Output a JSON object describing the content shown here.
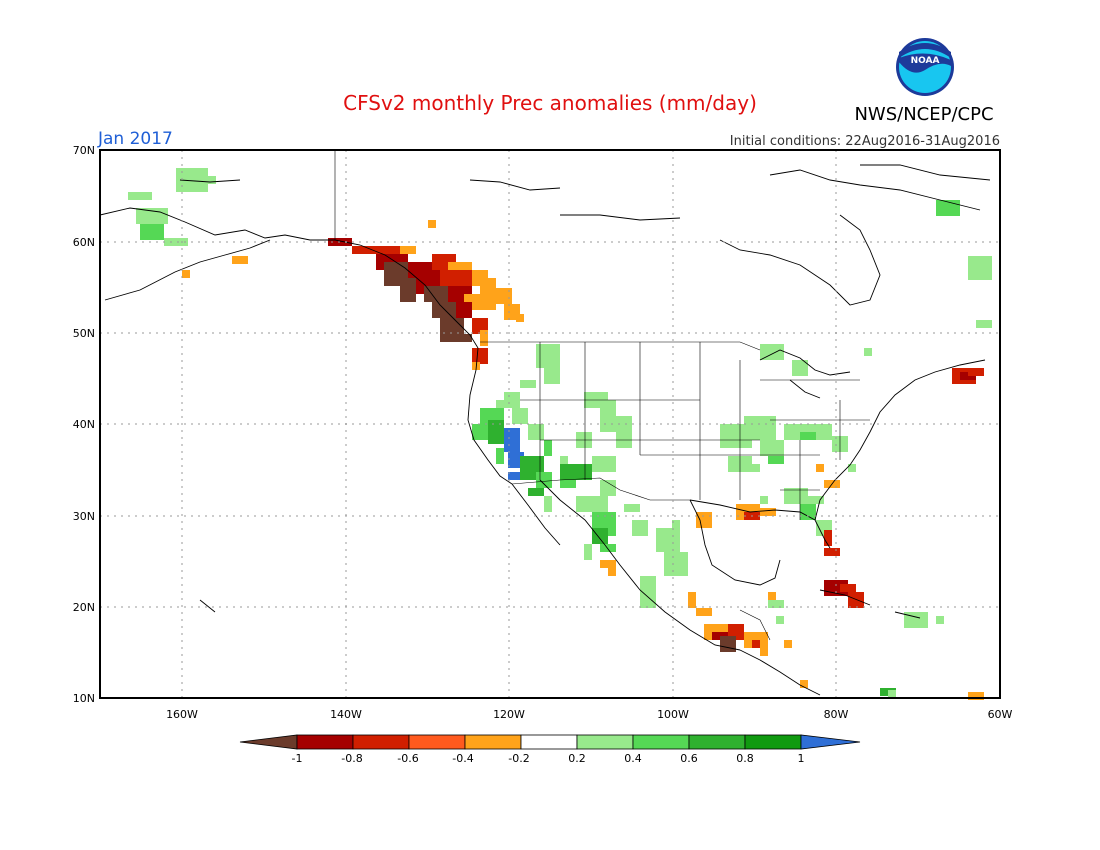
{
  "title": "CFSv2 monthly Prec anomalies (mm/day)",
  "agency": "NWS/NCEP/CPC",
  "logo_text": "NOAA",
  "valid_month": "Jan 2017",
  "init_conditions": "Initial conditions: 22Aug2016-31Aug2016",
  "lat_labels": [
    "70N",
    "60N",
    "50N",
    "40N",
    "30N",
    "20N",
    "10N"
  ],
  "lon_labels": [
    "160W",
    "140W",
    "120W",
    "100W",
    "80W",
    "60W"
  ],
  "colorbar": {
    "labels": [
      "-1",
      "-0.8",
      "-0.6",
      "-0.4",
      "-0.2",
      "0.2",
      "0.4",
      "0.6",
      "0.8",
      "1"
    ],
    "colors": [
      "#6b3b2b",
      "#a50000",
      "#d11f00",
      "#ff5a1e",
      "#ffa31a",
      "#ffffff",
      "#98e98c",
      "#55d855",
      "#2fb12f",
      "#109a10",
      "#2f6fd6"
    ]
  },
  "colors": {
    "title": "#e01010",
    "month_label": "#1f5fd6",
    "frame": "#000000",
    "grid": "#999999"
  }
}
